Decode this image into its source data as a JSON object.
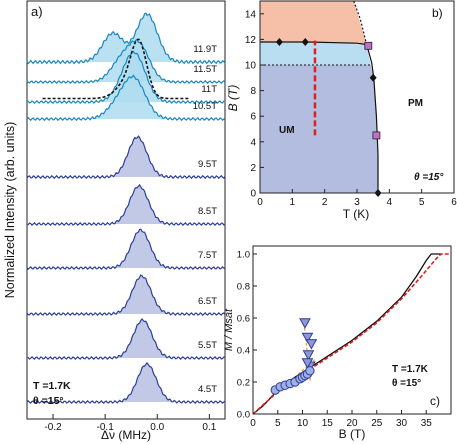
{
  "chart_data": [
    {
      "panel_label": "a)",
      "type": "area",
      "xlabel": "Δν (MHz)",
      "ylabel": "Normalized Intensity (arb. units)",
      "xlim": [
        -0.25,
        0.13
      ],
      "x_ticks": [
        "-0.2",
        "-0.1",
        "0.0",
        "0.1"
      ],
      "annotation": [
        "T =1.7K",
        "θ =15°"
      ],
      "series": [
        {
          "name": "4.5T",
          "group": "UM",
          "peak_center": -0.02,
          "peak_width": 0.018
        },
        {
          "name": "5.5T",
          "group": "UM",
          "peak_center": -0.028,
          "peak_width": 0.018
        },
        {
          "name": "6.5T",
          "group": "UM",
          "peak_center": -0.03,
          "peak_width": 0.018
        },
        {
          "name": "7.5T",
          "group": "UM",
          "peak_center": -0.032,
          "peak_width": 0.018
        },
        {
          "name": "8.5T",
          "group": "UM",
          "peak_center": -0.035,
          "peak_width": 0.018
        },
        {
          "name": "9.5T",
          "group": "UM",
          "peak_center": -0.038,
          "peak_width": 0.018
        },
        {
          "name": "10.5T",
          "group": "PM",
          "peak_center": -0.045,
          "peak_width": 0.022
        },
        {
          "name": "11T",
          "group": "PM",
          "peak_center": -0.04,
          "peak_width": 0.02
        },
        {
          "name": "11.5T",
          "group": "PM",
          "peak_center": -0.035,
          "peak_width": 0.02
        },
        {
          "name": "11.9T",
          "group": "PM",
          "peak_center": -0.02,
          "peak_width": 0.02
        }
      ]
    },
    {
      "panel_label": "b)",
      "type": "area",
      "xlabel": "T (K)",
      "ylabel": "B (T)",
      "xlim": [
        0,
        6
      ],
      "ylim": [
        0,
        15
      ],
      "x_ticks": [
        "0",
        "1",
        "2",
        "3",
        "4",
        "5",
        "6"
      ],
      "y_ticks": [
        "0",
        "2",
        "4",
        "6",
        "8",
        "10",
        "12",
        "14"
      ],
      "region_labels": [
        "UM",
        "PM"
      ],
      "annotation": "θ =15°",
      "phase_boundary": [
        [
          0,
          11.8
        ],
        [
          1.5,
          11.8
        ],
        [
          3.0,
          11.7
        ],
        [
          3.3,
          11.6
        ],
        [
          3.45,
          10.2
        ],
        [
          3.52,
          9.0
        ],
        [
          3.6,
          6.0
        ],
        [
          3.65,
          3.0
        ],
        [
          3.65,
          0
        ]
      ],
      "diamond_points": [
        [
          0.6,
          11.8
        ],
        [
          1.4,
          11.8
        ],
        [
          3.5,
          9.0
        ],
        [
          3.65,
          0
        ]
      ],
      "square_points": [
        [
          3.35,
          11.5
        ],
        [
          3.6,
          4.5
        ]
      ],
      "dashed_line_B": 10.0,
      "measurement_path": {
        "T": 1.7,
        "B_range": [
          4.5,
          11.9
        ]
      }
    },
    {
      "panel_label": "c)",
      "type": "line",
      "xlabel": "B (T)",
      "ylabel": "M / Msat",
      "xlim": [
        0,
        40
      ],
      "ylim": [
        0,
        1.05
      ],
      "x_ticks": [
        "0",
        "5",
        "10",
        "15",
        "20",
        "25",
        "30",
        "35"
      ],
      "y_ticks": [
        "0.0",
        "0.2",
        "0.4",
        "0.6",
        "0.8",
        "1.0"
      ],
      "annotation": [
        "T =1.7K",
        "θ =15°"
      ],
      "magnetization_solid": [
        [
          0,
          0
        ],
        [
          2,
          0.05
        ],
        [
          5,
          0.15
        ],
        [
          8,
          0.22
        ],
        [
          10,
          0.26
        ],
        [
          11,
          0.28
        ],
        [
          12,
          0.3
        ],
        [
          15,
          0.36
        ],
        [
          20,
          0.46
        ],
        [
          25,
          0.58
        ],
        [
          30,
          0.73
        ],
        [
          33,
          0.86
        ],
        [
          35,
          0.96
        ],
        [
          36,
          1.0
        ],
        [
          38,
          1.0
        ]
      ],
      "magnetization_dashed": [
        [
          0,
          0
        ],
        [
          5,
          0.14
        ],
        [
          10,
          0.25
        ],
        [
          15,
          0.35
        ],
        [
          20,
          0.45
        ],
        [
          25,
          0.57
        ],
        [
          30,
          0.72
        ],
        [
          34,
          0.86
        ],
        [
          37,
          0.97
        ],
        [
          38,
          1.0
        ],
        [
          40,
          1.0
        ]
      ],
      "circle_points": [
        [
          4.5,
          0.15
        ],
        [
          5.5,
          0.17
        ],
        [
          6.5,
          0.18
        ],
        [
          7.5,
          0.19
        ],
        [
          8.5,
          0.2
        ],
        [
          9.5,
          0.22
        ],
        [
          10.0,
          0.23
        ],
        [
          10.5,
          0.24
        ],
        [
          11.0,
          0.25
        ],
        [
          11.5,
          0.27
        ]
      ],
      "triangle_points": [
        [
          10.5,
          0.57
        ],
        [
          11.0,
          0.48
        ],
        [
          11.2,
          0.37
        ],
        [
          11.5,
          0.3
        ],
        [
          11.8,
          0.44
        ],
        [
          11.0,
          0.32
        ]
      ]
    }
  ]
}
